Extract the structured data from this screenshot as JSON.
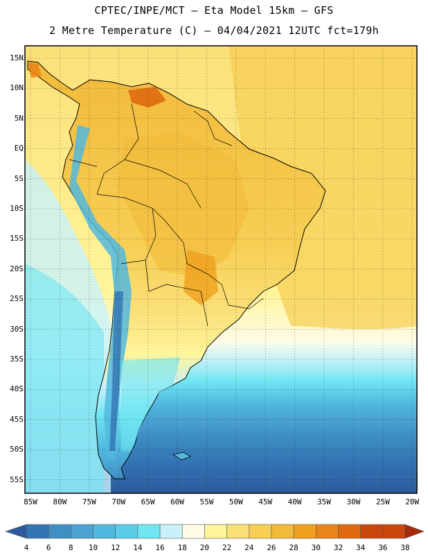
{
  "header": {
    "line1": "CPTEC/INPE/MCT –  Eta Model 15km – GFS",
    "line2": "2 Metre Temperature (C) – 04/04/2021 12UTC fct=179h"
  },
  "map": {
    "lat_labels": [
      "15N",
      "10N",
      "5N",
      "EQ",
      "5S",
      "10S",
      "15S",
      "20S",
      "25S",
      "30S",
      "35S",
      "40S",
      "45S",
      "50S",
      "55S"
    ],
    "lon_labels": [
      "85W",
      "80W",
      "75W",
      "70W",
      "65W",
      "60W",
      "55W",
      "50W",
      "45W",
      "40W",
      "35W",
      "30W",
      "25W",
      "20W"
    ]
  },
  "colorbar": {
    "ticks": [
      "4",
      "6",
      "8",
      "10",
      "12",
      "14",
      "16",
      "18",
      "20",
      "22",
      "24",
      "26",
      "28",
      "30",
      "32",
      "34",
      "36",
      "38"
    ],
    "colors": [
      "#2d5a9e",
      "#3374b3",
      "#3f8fc6",
      "#4aa3d3",
      "#52b8df",
      "#5ccde8",
      "#6fe6f2",
      "#c8f1fb",
      "#fffbe6",
      "#fff59a",
      "#fbe079",
      "#f7cf55",
      "#f2ba3a",
      "#efa01e",
      "#ea8619",
      "#e06a10",
      "#c9460d",
      "#a8290a"
    ]
  }
}
